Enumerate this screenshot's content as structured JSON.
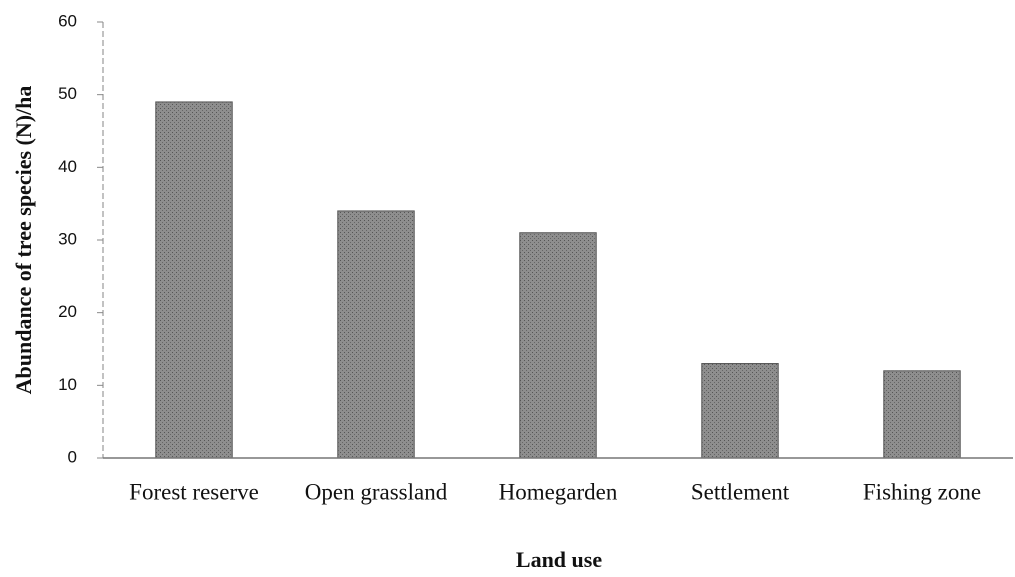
{
  "chart_data": {
    "type": "bar",
    "categories": [
      "Forest reserve",
      "Open grassland",
      "Homegarden",
      "Settlement",
      "Fishing zone"
    ],
    "values": [
      49,
      34,
      31,
      13,
      12
    ],
    "color": "#8e8e8e",
    "ylim": [
      0,
      60
    ],
    "yticks": [
      0,
      10,
      20,
      30,
      40,
      50,
      60
    ],
    "xlabel": "Land use",
    "ylabel": "Abundance of tree species (N)/ha",
    "grid": false
  }
}
